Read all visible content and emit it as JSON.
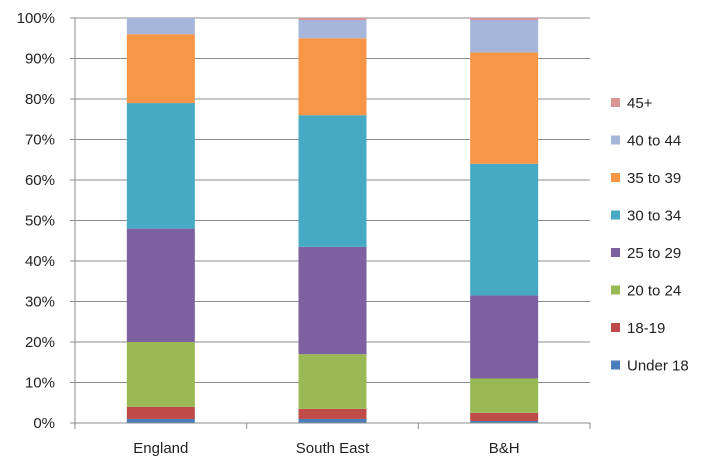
{
  "chart_data": {
    "type": "bar",
    "stacked": true,
    "percent": true,
    "categories": [
      "England",
      "South East",
      "B&H"
    ],
    "y_ticks": [
      "0%",
      "10%",
      "20%",
      "30%",
      "40%",
      "50%",
      "60%",
      "70%",
      "80%",
      "90%",
      "100%"
    ],
    "ylim": [
      0,
      100
    ],
    "grid": true,
    "legend_position": "right",
    "series": [
      {
        "name": "Under 18",
        "color": "#4A7EBB",
        "values": [
          1,
          1,
          0.5
        ]
      },
      {
        "name": "18-19",
        "color": "#BE4B48",
        "values": [
          3,
          2.5,
          2
        ]
      },
      {
        "name": "20 to 24",
        "color": "#98B954",
        "values": [
          16,
          13.5,
          8.5
        ]
      },
      {
        "name": "25 to 29",
        "color": "#7D60A0",
        "values": [
          28,
          26.5,
          20.5
        ]
      },
      {
        "name": "30 to 34",
        "color": "#46AAC5",
        "values": [
          31,
          32.5,
          32.5
        ]
      },
      {
        "name": "35 to 39",
        "color": "#F79646",
        "values": [
          17,
          19,
          27.5
        ]
      },
      {
        "name": "40 to 44",
        "color": "#A5B6DA",
        "values": [
          4,
          4.5,
          8
        ]
      },
      {
        "name": "45+",
        "color": "#D99694",
        "values": [
          0,
          0.5,
          0.5
        ]
      }
    ]
  }
}
